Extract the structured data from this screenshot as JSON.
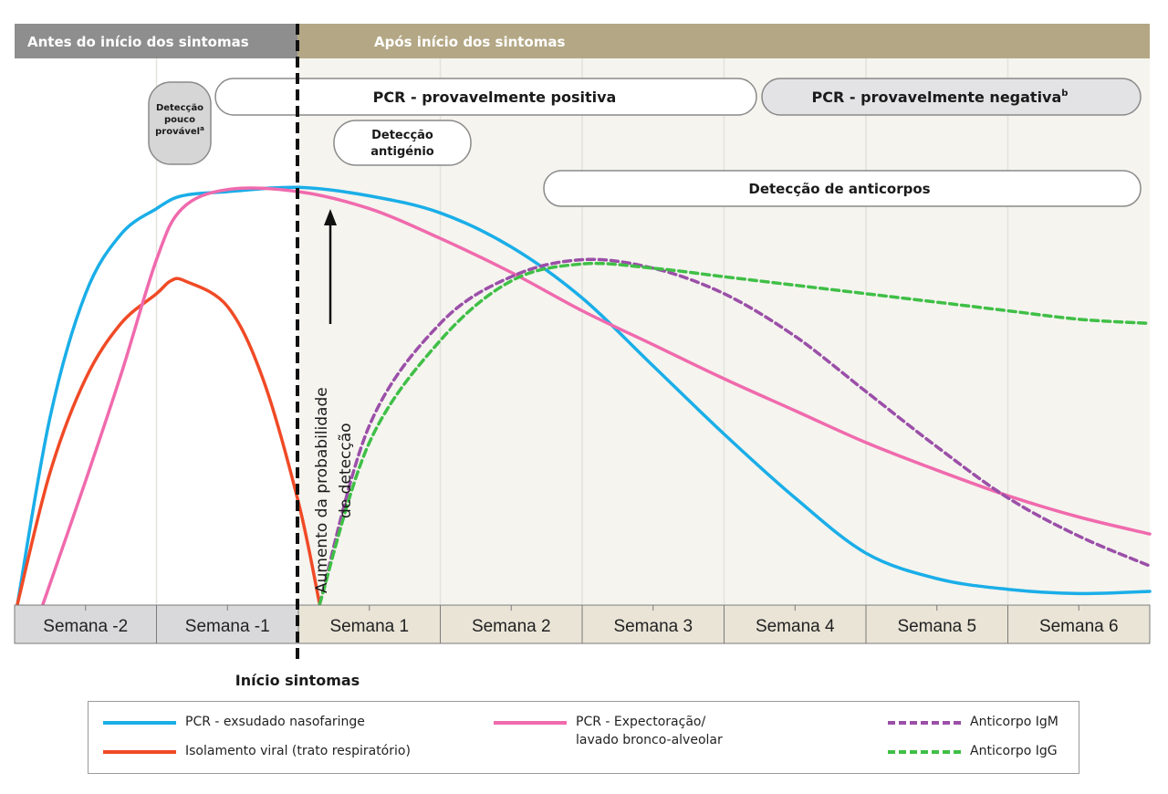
{
  "header": {
    "before_label": "Antes do início dos sintomas",
    "after_label": "Após início dos sintomas",
    "before_color": "#8e8e8e",
    "after_color": "#b3a785"
  },
  "pills": {
    "unlikely": [
      "Detecção",
      "pouco",
      "provável"
    ],
    "unlikely_note": "a",
    "pcr_positive": "PCR - provavelmente positiva",
    "pcr_negative": "PCR - provavelmente negativa",
    "pcr_negative_note": "b",
    "antigen": [
      "Detecção",
      "antigénio"
    ],
    "antibody": "Detecção de anticorpos"
  },
  "arrow_label": [
    "Aumento da probabilidade",
    "de detecção"
  ],
  "onset_label": "Início sintomas",
  "chart_data": {
    "type": "line",
    "x_unit": "weeks relative to symptom onset",
    "categories": [
      "Semana -2",
      "Semana -1",
      "Semana 1",
      "Semana 2",
      "Semana 3",
      "Semana 4",
      "Semana 5",
      "Semana 6"
    ],
    "xlim": [
      -2,
      6
    ],
    "ylim": [
      0,
      100
    ],
    "grid": true,
    "legend_position": "bottom",
    "series": [
      {
        "name": "PCR - exsudado nasofaringe",
        "color": "#1aaee8",
        "dash": false,
        "points": [
          [
            -1.98,
            0
          ],
          [
            -1.75,
            44
          ],
          [
            -1.5,
            73
          ],
          [
            -1.25,
            87
          ],
          [
            -1,
            93
          ],
          [
            -0.82,
            96
          ],
          [
            -0.5,
            97
          ],
          [
            0,
            98
          ],
          [
            0.5,
            96
          ],
          [
            1,
            92
          ],
          [
            1.5,
            84
          ],
          [
            2,
            72
          ],
          [
            2.5,
            56
          ],
          [
            3,
            40
          ],
          [
            3.5,
            25
          ],
          [
            4,
            12
          ],
          [
            4.5,
            6
          ],
          [
            5,
            3.5
          ],
          [
            5.5,
            2.5
          ],
          [
            6,
            3
          ]
        ]
      },
      {
        "name": "Isolamento viral (trato respiratório)",
        "color": "#f04a26",
        "dash": false,
        "points": [
          [
            -1.98,
            0
          ],
          [
            -1.75,
            31
          ],
          [
            -1.5,
            53
          ],
          [
            -1.25,
            66
          ],
          [
            -1,
            73
          ],
          [
            -0.9,
            76
          ],
          [
            -0.8,
            76
          ],
          [
            -0.5,
            70
          ],
          [
            -0.25,
            53
          ],
          [
            0,
            24
          ],
          [
            0.15,
            0
          ]
        ]
      },
      {
        "name": "PCR - Expectoração/\nlavado bronco-alveolar",
        "color": "#f06aad",
        "dash": false,
        "points": [
          [
            -1.8,
            0
          ],
          [
            -1.5,
            29
          ],
          [
            -1.25,
            54
          ],
          [
            -1,
            81
          ],
          [
            -0.82,
            93
          ],
          [
            -0.5,
            97.5
          ],
          [
            0,
            97
          ],
          [
            0.5,
            93
          ],
          [
            1,
            86
          ],
          [
            1.5,
            78
          ],
          [
            2,
            69
          ],
          [
            2.5,
            61
          ],
          [
            3,
            53
          ],
          [
            3.5,
            45.5
          ],
          [
            4,
            38
          ],
          [
            4.5,
            31.5
          ],
          [
            5,
            25.5
          ],
          [
            5.5,
            20.5
          ],
          [
            6,
            16.5
          ]
        ]
      },
      {
        "name": "Anticorpo IgM",
        "color": "#9b4fa8",
        "dash": true,
        "points": [
          [
            0.15,
            0
          ],
          [
            0.5,
            42
          ],
          [
            1,
            66
          ],
          [
            1.5,
            77
          ],
          [
            2,
            81
          ],
          [
            2.5,
            79
          ],
          [
            3,
            73
          ],
          [
            3.5,
            63
          ],
          [
            4,
            50
          ],
          [
            4.5,
            37
          ],
          [
            5,
            25
          ],
          [
            5.5,
            16
          ],
          [
            6,
            9
          ]
        ]
      },
      {
        "name": "Anticorpo IgG",
        "color": "#3fbf46",
        "dash": true,
        "points": [
          [
            0.15,
            0
          ],
          [
            0.5,
            38
          ],
          [
            1,
            62
          ],
          [
            1.5,
            76
          ],
          [
            2,
            80
          ],
          [
            2.5,
            79
          ],
          [
            3,
            77
          ],
          [
            3.5,
            75
          ],
          [
            4,
            73
          ],
          [
            4.5,
            71
          ],
          [
            5,
            69
          ],
          [
            5.5,
            67
          ],
          [
            6,
            66
          ]
        ]
      }
    ]
  }
}
